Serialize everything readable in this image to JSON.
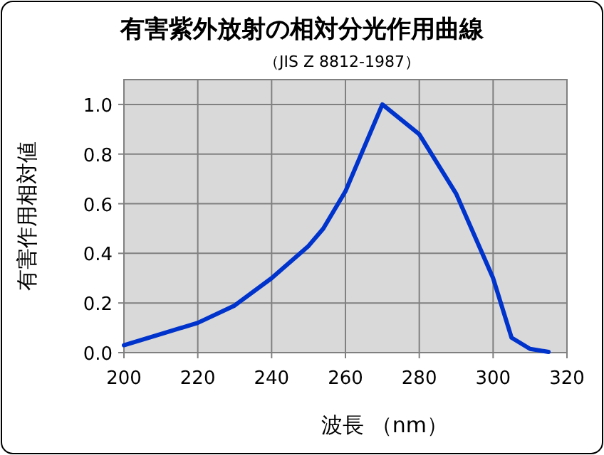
{
  "chart_data": {
    "type": "line",
    "title": "有害紫外放射の相対分光作用曲線",
    "subtitle": "（JIS Z 8812-1987）",
    "xlabel": "波長 （nm）",
    "ylabel": "有害作用相対値",
    "x": [
      200,
      210,
      220,
      230,
      240,
      250,
      254,
      260,
      270,
      280,
      290,
      300,
      305,
      310,
      315
    ],
    "series": [
      {
        "color": "#0033cc",
        "values": [
          0.03,
          0.075,
          0.12,
          0.19,
          0.3,
          0.43,
          0.5,
          0.65,
          1.0,
          0.88,
          0.64,
          0.3,
          0.06,
          0.015,
          0.003
        ]
      }
    ],
    "xlim": [
      200,
      320
    ],
    "xticks": [
      200,
      220,
      240,
      260,
      280,
      300,
      320
    ],
    "ylim": [
      0,
      1.1
    ],
    "yticks": [
      {
        "value": 0,
        "label": "0.0"
      },
      {
        "value": 0.2,
        "label": "0.2"
      },
      {
        "value": 0.4,
        "label": "0.4"
      },
      {
        "value": 0.6,
        "label": "0.6"
      },
      {
        "value": 0.8,
        "label": "0.8"
      },
      {
        "value": 1.0,
        "label": "1.0"
      }
    ],
    "grid": true,
    "marker": "none",
    "line_style": "solid"
  }
}
